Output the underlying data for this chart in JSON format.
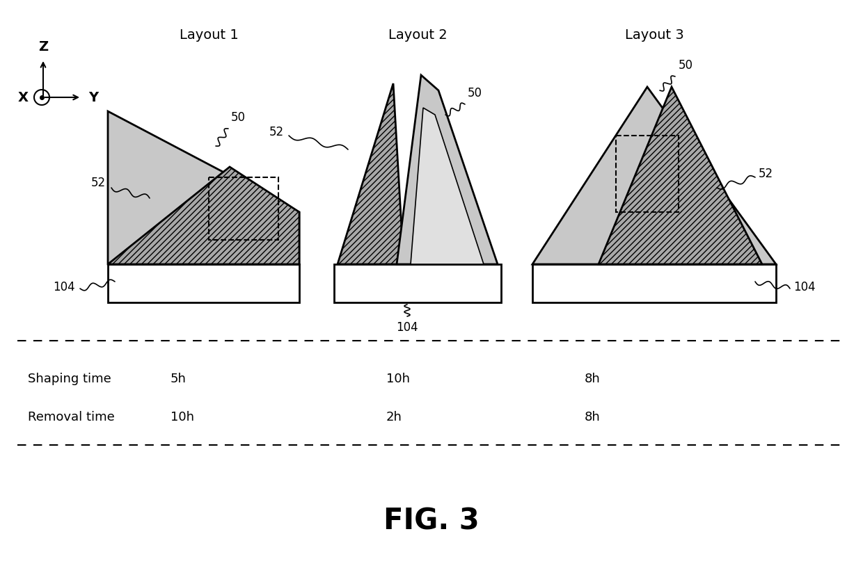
{
  "title": "FIG. 3",
  "background_color": "#ffffff",
  "layout_labels": [
    "Layout 1",
    "Layout 2",
    "Layout 3"
  ],
  "label_50": "50",
  "label_52": "52",
  "label_104": "104",
  "shaping_time_label": "Shaping time",
  "shaping_times": [
    "5h",
    "10h",
    "8h"
  ],
  "removal_time_label": "Removal time",
  "removal_times": [
    "10h",
    "2h",
    "8h"
  ],
  "axis_label_z": "Z",
  "axis_label_y": "Y",
  "axis_label_x": "X",
  "color_light_gray": "#c8c8c8",
  "color_mid_gray": "#a8a8a8",
  "color_dark_gray": "#808080",
  "color_white": "#ffffff",
  "color_black": "#000000"
}
